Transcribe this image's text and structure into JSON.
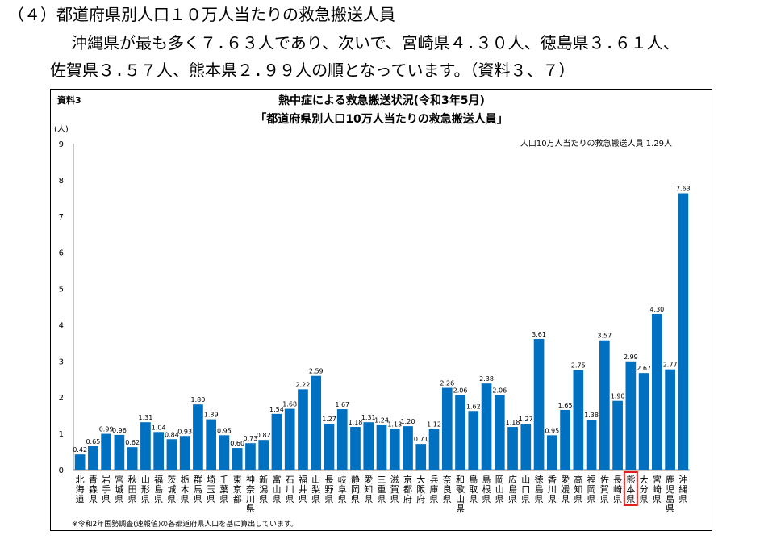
{
  "heading": {
    "line1": "（４）都道府県別人口１０万人当たりの救急搬送人員",
    "line2": "沖縄県が最も多く７.６３人であり、次いで、宮崎県４.３０人、徳島県３.６１人、",
    "line3": "佐賀県３.５７人、熊本県２.９９人の順となっています。（資料３、７）"
  },
  "chart_data": {
    "type": "bar",
    "tag": "資料3",
    "title": "熱中症による救急搬送状況(令和3年5月)",
    "subtitle": "「都道府県別人口10万人当たりの救急搬送人員」",
    "ylabel": "(人)",
    "annotation": "人口10万人当たりの救急搬送人員 1.29人",
    "footnote": "※令和2年国勢調査(速報値)の各都道府県人口を基に算出しています。",
    "ylim": [
      0,
      9
    ],
    "yticks": [
      0,
      1,
      2,
      3,
      4,
      5,
      6,
      7,
      8,
      9
    ],
    "bar_color": "#0070C0",
    "highlight_color": "#E02020",
    "highlight_category": "熊本県",
    "categories": [
      "北海道",
      "青森県",
      "岩手県",
      "宮城県",
      "秋田県",
      "山形県",
      "福島県",
      "茨城県",
      "栃木県",
      "群馬県",
      "埼玉県",
      "千葉県",
      "東京都",
      "神奈川県",
      "新潟県",
      "富山県",
      "石川県",
      "福井県",
      "山梨県",
      "長野県",
      "岐阜県",
      "静岡県",
      "愛知県",
      "三重県",
      "滋賀県",
      "京都府",
      "大阪府",
      "兵庫県",
      "奈良県",
      "和歌山県",
      "鳥取県",
      "島根県",
      "岡山県",
      "広島県",
      "山口県",
      "徳島県",
      "香川県",
      "愛媛県",
      "高知県",
      "福岡県",
      "佐賀県",
      "長崎県",
      "熊本県",
      "大分県",
      "宮崎県",
      "鹿児島県",
      "沖縄県"
    ],
    "values": [
      0.42,
      0.65,
      0.99,
      0.96,
      0.62,
      1.31,
      1.04,
      0.84,
      0.93,
      1.8,
      1.39,
      0.95,
      0.6,
      0.73,
      0.82,
      1.54,
      1.68,
      2.22,
      2.59,
      1.27,
      1.67,
      1.18,
      1.31,
      1.24,
      1.13,
      1.2,
      0.71,
      1.12,
      2.26,
      2.06,
      1.62,
      2.38,
      2.06,
      1.18,
      1.27,
      3.61,
      0.95,
      1.65,
      2.75,
      1.38,
      3.57,
      1.9,
      2.99,
      2.67,
      4.3,
      2.77,
      7.63
    ],
    "value_labels": [
      "0.42",
      "0.65",
      "0.99",
      "0.96",
      "0.62",
      "1.31",
      "1.04",
      "0.84",
      "0.93",
      "1.80",
      "1.39",
      "0.95",
      "0.60",
      "0.73",
      "0.82",
      "1.54",
      "1.68",
      "2.22",
      "2.59",
      "1.27",
      "1.67",
      "1.18",
      "1.31",
      "1.24",
      "1.13",
      "1.20",
      "0.71",
      "1.12",
      "2.26",
      "2.06",
      "1.62",
      "2.38",
      "2.06",
      "1.18",
      "1.27",
      "3.61",
      "0.95",
      "1.65",
      "2.75",
      "1.38",
      "3.57",
      "1.90",
      "2.99",
      "2.67",
      "4.30",
      "2.77",
      "7.63"
    ]
  }
}
